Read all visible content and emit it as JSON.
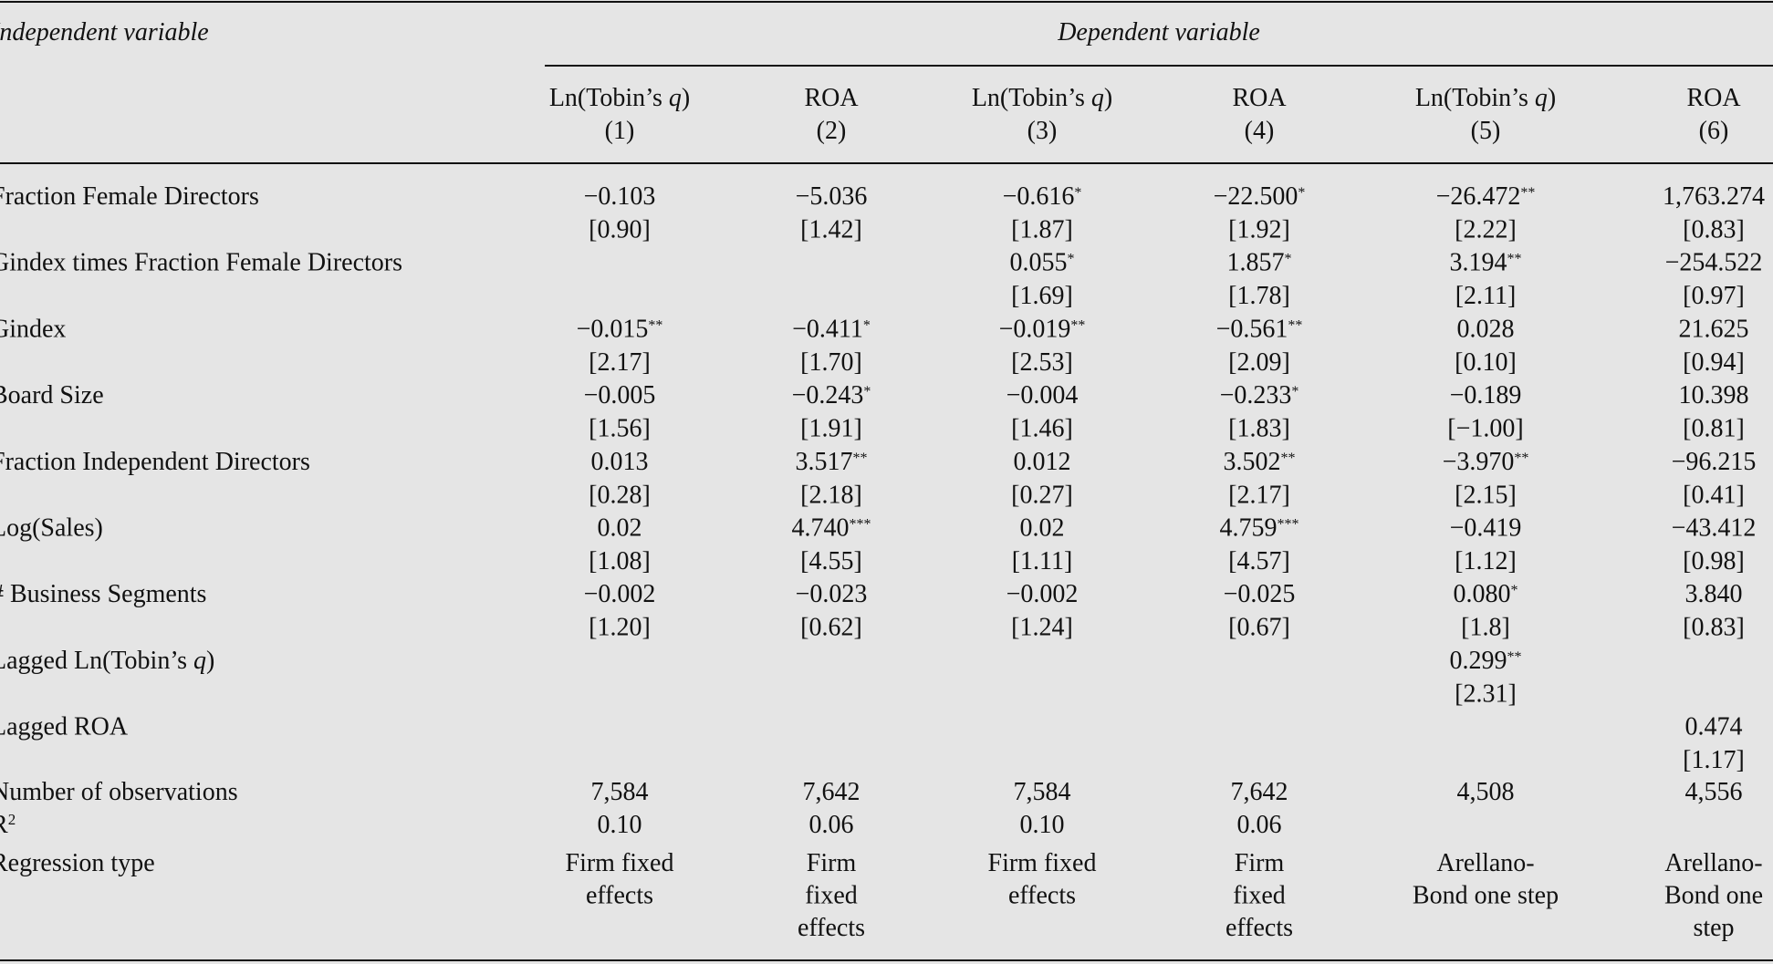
{
  "table": {
    "stub_head": "Independent variable",
    "spanner": "Dependent variable",
    "columns": [
      {
        "head": [
          "Ln(Tobin’s ",
          {
            "italic": "q"
          },
          ")"
        ],
        "number": "(1)"
      },
      {
        "head": [
          "ROA"
        ],
        "number": "(2)"
      },
      {
        "head": [
          "Ln(Tobin’s ",
          {
            "italic": "q"
          },
          ")"
        ],
        "number": "(3)"
      },
      {
        "head": [
          "ROA"
        ],
        "number": "(4)"
      },
      {
        "head": [
          "Ln(Tobin’s ",
          {
            "italic": "q"
          },
          ")"
        ],
        "number": "(5)"
      },
      {
        "head": [
          "ROA"
        ],
        "number": "(6)"
      }
    ],
    "rows": [
      {
        "label": [
          "Fraction Female Directors"
        ],
        "cells": [
          {
            "coef": "−0.103",
            "t": "[0.90]"
          },
          {
            "coef": "−5.036",
            "t": "[1.42]"
          },
          {
            "coef": "−0.616",
            "stars": "*",
            "t": "[1.87]"
          },
          {
            "coef": "−22.500",
            "stars": "*",
            "t": "[1.92]"
          },
          {
            "coef": "−26.472",
            "stars": "**",
            "t": "[2.22]"
          },
          {
            "coef": "1,763.274",
            "t": "[0.83]"
          }
        ]
      },
      {
        "label": [
          "Gindex times Fraction Female Directors"
        ],
        "cells": [
          null,
          null,
          {
            "coef": "0.055",
            "stars": "*",
            "t": "[1.69]"
          },
          {
            "coef": "1.857",
            "stars": "*",
            "t": "[1.78]"
          },
          {
            "coef": "3.194",
            "stars": "**",
            "t": "[2.11]"
          },
          {
            "coef": "−254.522",
            "t": "[0.97]"
          }
        ]
      },
      {
        "label": [
          "Gindex"
        ],
        "cells": [
          {
            "coef": "−0.015",
            "stars": "**",
            "t": "[2.17]"
          },
          {
            "coef": "−0.411",
            "stars": "*",
            "t": "[1.70]"
          },
          {
            "coef": "−0.019",
            "stars": "**",
            "t": "[2.53]"
          },
          {
            "coef": "−0.561",
            "stars": "**",
            "t": "[2.09]"
          },
          {
            "coef": "0.028",
            "t": "[0.10]"
          },
          {
            "coef": "21.625",
            "t": "[0.94]"
          }
        ]
      },
      {
        "label": [
          "Board Size"
        ],
        "cells": [
          {
            "coef": "−0.005",
            "t": "[1.56]"
          },
          {
            "coef": "−0.243",
            "stars": "*",
            "t": "[1.91]"
          },
          {
            "coef": "−0.004",
            "t": "[1.46]"
          },
          {
            "coef": "−0.233",
            "stars": "*",
            "t": "[1.83]"
          },
          {
            "coef": "−0.189",
            "t": "[−1.00]"
          },
          {
            "coef": "10.398",
            "t": "[0.81]"
          }
        ]
      },
      {
        "label": [
          "Fraction Independent Directors"
        ],
        "cells": [
          {
            "coef": "0.013",
            "t": "[0.28]"
          },
          {
            "coef": "3.517",
            "stars": "**",
            "t": "[2.18]"
          },
          {
            "coef": "0.012",
            "t": "[0.27]"
          },
          {
            "coef": "3.502",
            "stars": "**",
            "t": "[2.17]"
          },
          {
            "coef": "−3.970",
            "stars": "**",
            "t": "[2.15]"
          },
          {
            "coef": "−96.215",
            "t": "[0.41]"
          }
        ]
      },
      {
        "label": [
          "Log(Sales)"
        ],
        "cells": [
          {
            "coef": "0.02",
            "t": "[1.08]"
          },
          {
            "coef": "4.740",
            "stars": "***",
            "t": "[4.55]"
          },
          {
            "coef": "0.02",
            "t": "[1.11]"
          },
          {
            "coef": "4.759",
            "stars": "***",
            "t": "[4.57]"
          },
          {
            "coef": "−0.419",
            "t": "[1.12]"
          },
          {
            "coef": "−43.412",
            "t": "[0.98]"
          }
        ]
      },
      {
        "label": [
          "# Business Segments"
        ],
        "cells": [
          {
            "coef": "−0.002",
            "t": "[1.20]"
          },
          {
            "coef": "−0.023",
            "t": "[0.62]"
          },
          {
            "coef": "−0.002",
            "t": "[1.24]"
          },
          {
            "coef": "−0.025",
            "t": "[0.67]"
          },
          {
            "coef": "0.080",
            "stars": "*",
            "t": "[1.8]"
          },
          {
            "coef": "3.840",
            "t": "[0.83]"
          }
        ]
      },
      {
        "label": [
          "Lagged Ln(Tobin’s ",
          {
            "italic": "q"
          },
          ")"
        ],
        "cells": [
          null,
          null,
          null,
          null,
          {
            "coef": "0.299",
            "stars": "**",
            "t": "[2.31]"
          },
          null
        ]
      },
      {
        "label": [
          "Lagged ROA"
        ],
        "cells": [
          null,
          null,
          null,
          null,
          null,
          {
            "coef": "0.474",
            "t": "[1.17]"
          }
        ]
      }
    ],
    "observations": {
      "label": [
        "Number of observations"
      ],
      "values": [
        "7,584",
        "7,642",
        "7,584",
        "7,642",
        "4,508",
        "4,556"
      ]
    },
    "r_squared": {
      "label": [
        "R",
        {
          "sup": "2"
        }
      ],
      "values": [
        "0.10",
        "0.06",
        "0.10",
        "0.06",
        null,
        null
      ]
    },
    "regression_type": {
      "label": [
        "Regression type"
      ],
      "values": [
        [
          "Firm fixed",
          "effects"
        ],
        [
          "Firm",
          "fixed",
          "effects"
        ],
        [
          "Firm fixed",
          "effects"
        ],
        [
          "Firm",
          "fixed",
          "effects"
        ],
        [
          "Arellano-",
          "Bond one step"
        ],
        [
          "Arellano-",
          "Bond one",
          "step"
        ]
      ]
    }
  }
}
